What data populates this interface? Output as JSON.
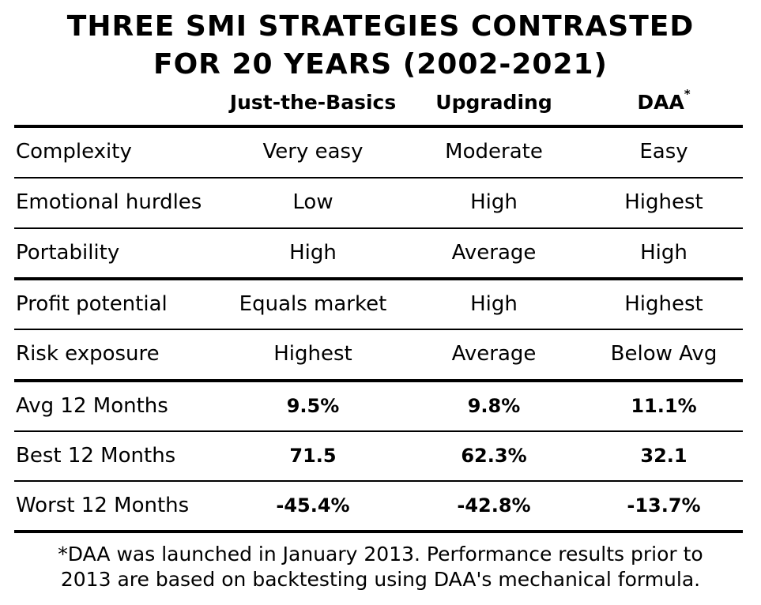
{
  "title": {
    "line1": "THREE SMI STRATEGIES CONTRASTED",
    "line2": "FOR 20 YEARS (2002-2021)"
  },
  "columns": [
    {
      "label": "Just-the-Basics",
      "marker": ""
    },
    {
      "label": "Upgrading",
      "marker": ""
    },
    {
      "label": "DAA",
      "marker": "*"
    }
  ],
  "rows": [
    {
      "label": "Complexity",
      "values": [
        "Very easy",
        "Moderate",
        "Easy"
      ]
    },
    {
      "label": "Emotional hurdles",
      "values": [
        "Low",
        "High",
        "Highest"
      ]
    },
    {
      "label": "Portability",
      "values": [
        "High",
        "Average",
        "High"
      ]
    },
    {
      "label": "Profit potential",
      "values": [
        "Equals market",
        "High",
        "Highest"
      ]
    },
    {
      "label": "Risk exposure",
      "values": [
        "Highest",
        "Average",
        "Below Avg"
      ]
    },
    {
      "label": "Avg 12 Months",
      "values": [
        "9.5%",
        "9.8%",
        "11.1%"
      ]
    },
    {
      "label": "Best 12 Months",
      "values": [
        "71.5",
        "62.3%",
        "32.1"
      ]
    },
    {
      "label": "Worst 12 Months",
      "values": [
        "-45.4%",
        "-42.8%",
        "-13.7%"
      ]
    }
  ],
  "footnote": {
    "line1": "*DAA was launched in January 2013. Performance results prior to",
    "line2": "2013 are based on backtesting using DAA's mechanical formula."
  }
}
